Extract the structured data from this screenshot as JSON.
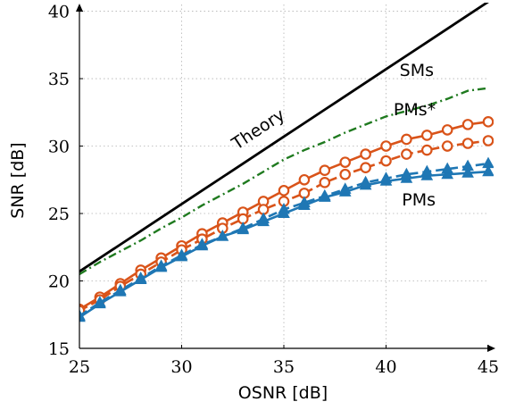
{
  "chart_data": {
    "type": "line",
    "xlabel": "OSNR [dB]",
    "ylabel": "SNR [dB]",
    "xlim": [
      25,
      45
    ],
    "ylim": [
      15,
      40.5
    ],
    "xticks": [
      "25",
      "30",
      "35",
      "40",
      "45"
    ],
    "yticks": [
      "15",
      "20",
      "25",
      "30",
      "35",
      "40"
    ],
    "grid": true,
    "x": [
      25,
      26,
      27,
      28,
      29,
      30,
      31,
      32,
      33,
      34,
      35,
      36,
      37,
      38,
      39,
      40,
      41,
      42,
      43,
      44,
      45
    ],
    "series": [
      {
        "key": "theory",
        "color": "#000000",
        "style": "solid",
        "marker": "none",
        "values": [
          20.7,
          21.7,
          22.7,
          23.7,
          24.7,
          25.7,
          26.7,
          27.7,
          28.7,
          29.7,
          30.7,
          31.7,
          32.7,
          33.7,
          34.7,
          35.7,
          36.7,
          37.7,
          38.7,
          39.7,
          40.7
        ]
      },
      {
        "key": "sms",
        "color": "#1f7a1f",
        "style": "dashdot",
        "marker": "none",
        "values": [
          20.5,
          21.4,
          22.2,
          23.0,
          23.9,
          24.7,
          25.6,
          26.4,
          27.2,
          28.1,
          29.0,
          29.7,
          30.3,
          31.0,
          31.6,
          32.2,
          32.6,
          33.0,
          33.5,
          34.1,
          34.3
        ]
      },
      {
        "key": "pms_star_solid",
        "color": "#d95319",
        "style": "solid",
        "marker": "circle",
        "values": [
          17.9,
          18.8,
          19.8,
          20.8,
          21.7,
          22.6,
          23.5,
          24.3,
          25.1,
          25.9,
          26.7,
          27.5,
          28.2,
          28.8,
          29.4,
          30.0,
          30.5,
          30.8,
          31.2,
          31.6,
          31.8
        ]
      },
      {
        "key": "pms_star_dashed",
        "color": "#d95319",
        "style": "dashed",
        "marker": "circle",
        "values": [
          17.8,
          18.6,
          19.6,
          20.5,
          21.4,
          22.3,
          23.1,
          23.9,
          24.6,
          25.3,
          25.9,
          26.5,
          27.3,
          27.9,
          28.4,
          28.9,
          29.4,
          29.7,
          30.0,
          30.2,
          30.4
        ]
      },
      {
        "key": "pms_solid",
        "color": "#1f77b4",
        "style": "solid",
        "marker": "triangle",
        "values": [
          17.3,
          18.3,
          19.2,
          20.1,
          21.0,
          21.8,
          22.6,
          23.3,
          23.8,
          24.4,
          25.0,
          25.6,
          26.2,
          26.6,
          27.1,
          27.4,
          27.6,
          27.8,
          27.9,
          28.0,
          28.1
        ]
      },
      {
        "key": "pms_dashed",
        "color": "#1f77b4",
        "style": "dashed",
        "marker": "triangle",
        "values": [
          17.4,
          18.4,
          19.3,
          20.2,
          21.1,
          21.9,
          22.7,
          23.3,
          23.9,
          24.6,
          25.3,
          25.8,
          26.3,
          26.8,
          27.3,
          27.6,
          27.9,
          28.1,
          28.3,
          28.5,
          28.7
        ]
      }
    ],
    "annotations": [
      {
        "key": "theory",
        "text": "Theory",
        "x": 33.9,
        "y": 30.9,
        "rotate": true
      },
      {
        "key": "sms",
        "text": "SMs",
        "x": 41.5,
        "y": 35.2
      },
      {
        "key": "pms_star",
        "text": "PMs*",
        "x": 41.4,
        "y": 32.3
      },
      {
        "key": "pms",
        "text": "PMs",
        "x": 41.6,
        "y": 25.6
      }
    ]
  }
}
